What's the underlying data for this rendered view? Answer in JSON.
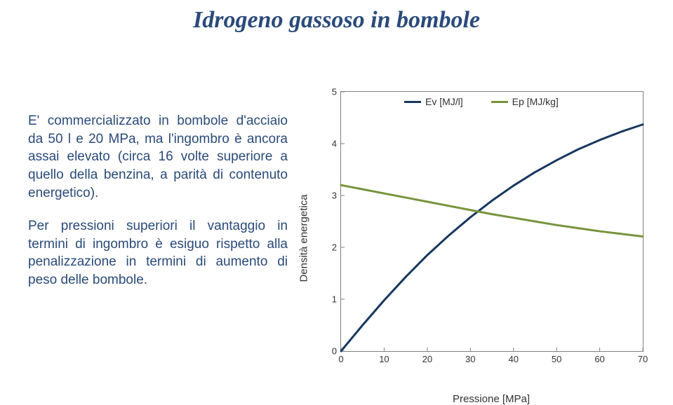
{
  "title": "Idrogeno gassoso in bombole",
  "paragraphs": {
    "p1": "E' commercializzato in bombole d'acciaio da 50 l e 20 MPa, ma l'ingombro è ancora assai elevato (circa 16 volte superiore a quello della benzina, a parità di contenuto energetico).",
    "p2": "Per pressioni superiori il vantaggio in termini di ingombro è esiguo rispetto alla penalizzazione in termini di aumento di peso delle bombole."
  },
  "chart": {
    "type": "line",
    "xlabel": "Pressione [MPa]",
    "ylabel": "Densità energetica",
    "xlim": [
      0,
      70
    ],
    "ylim": [
      0,
      5
    ],
    "xtick_step": 10,
    "ytick_step": 1,
    "grid": false,
    "border_color": "#808080",
    "background_color": "#ffffff",
    "axis_fontsize": 15,
    "tick_fontsize": 13,
    "line_width": 3,
    "legend": {
      "position": "top-inside",
      "items": [
        {
          "label": "Ev [MJ/l]",
          "color": "#17375e"
        },
        {
          "label": "Ep [MJ/kg]",
          "color": "#77933c"
        }
      ]
    },
    "series": {
      "ev": {
        "label": "Ev [MJ/l]",
        "color": "#17375e",
        "x": [
          0,
          5,
          10,
          15,
          20,
          25,
          30,
          35,
          40,
          45,
          50,
          55,
          60,
          65,
          70
        ],
        "y": [
          0,
          0.5,
          0.98,
          1.43,
          1.85,
          2.23,
          2.58,
          2.9,
          3.19,
          3.45,
          3.68,
          3.89,
          4.07,
          4.23,
          4.37
        ]
      },
      "ep": {
        "label": "Ep [MJ/kg]",
        "color": "#77933c",
        "x": [
          0,
          5,
          10,
          15,
          20,
          25,
          30,
          35,
          40,
          45,
          50,
          55,
          60,
          65,
          70
        ],
        "y": [
          3.2,
          3.12,
          3.04,
          2.96,
          2.88,
          2.8,
          2.72,
          2.64,
          2.57,
          2.5,
          2.43,
          2.37,
          2.31,
          2.26,
          2.21
        ]
      }
    }
  }
}
